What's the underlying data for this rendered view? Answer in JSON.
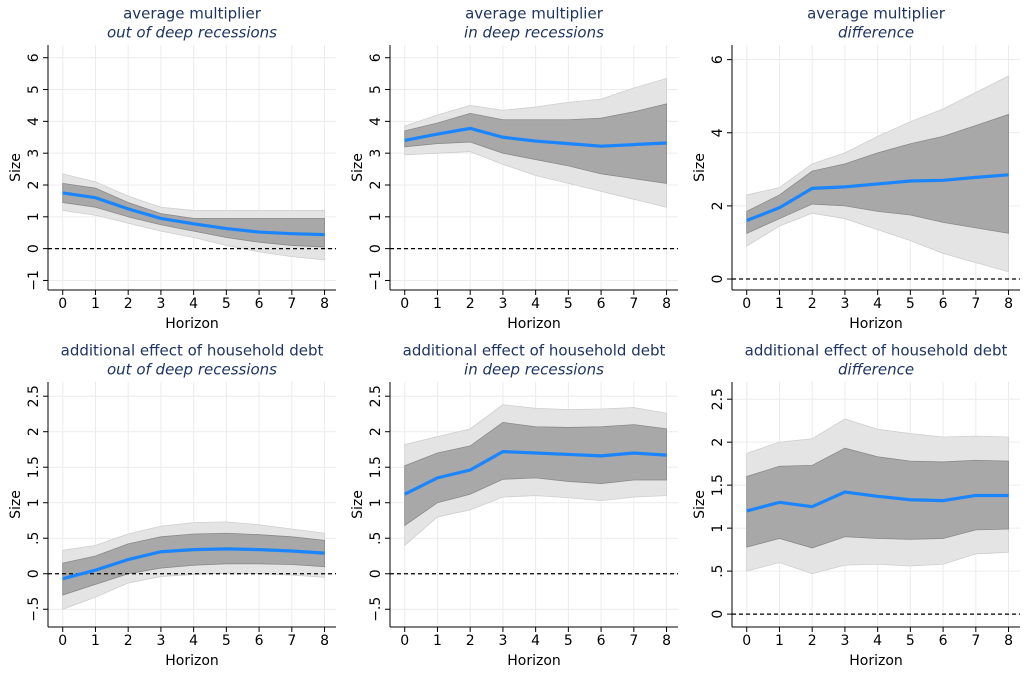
{
  "chart_data": [
    {
      "type": "line",
      "title": "average multiplier",
      "subtitle": "out of deep recessions",
      "xlabel": "Horizon",
      "ylabel": "Size",
      "x": [
        0,
        1,
        2,
        3,
        4,
        5,
        6,
        7,
        8
      ],
      "xlim": [
        -0.45,
        8.35
      ],
      "xticks": [
        0,
        1,
        2,
        3,
        4,
        5,
        6,
        7,
        8
      ],
      "ylim": [
        -1.3,
        6.4
      ],
      "yticks": [
        {
          "value": -1,
          "label": "−1"
        },
        0,
        1,
        2,
        3,
        4,
        5,
        6
      ],
      "grid": true,
      "refline": 0,
      "color": "#1a85ff",
      "values": [
        1.75,
        1.6,
        1.25,
        0.95,
        0.78,
        0.63,
        0.52,
        0.47,
        0.44
      ],
      "bands": [
        {
          "color": "#e4e4e4",
          "upper": [
            2.35,
            2.1,
            1.65,
            1.3,
            1.2,
            1.2,
            1.2,
            1.2,
            1.2
          ],
          "lower": [
            1.2,
            1.05,
            0.8,
            0.55,
            0.35,
            0.1,
            -0.1,
            -0.25,
            -0.35
          ]
        },
        {
          "color": "#a8a8a8",
          "upper": [
            2.05,
            1.9,
            1.45,
            1.1,
            0.95,
            0.95,
            0.95,
            0.95,
            0.95
          ],
          "lower": [
            1.45,
            1.3,
            1.0,
            0.75,
            0.55,
            0.35,
            0.2,
            0.1,
            0.05
          ]
        }
      ]
    },
    {
      "type": "line",
      "title": "average multiplier",
      "subtitle": "in deep recessions",
      "xlabel": "Horizon",
      "ylabel": "Size",
      "x": [
        0,
        1,
        2,
        3,
        4,
        5,
        6,
        7,
        8
      ],
      "xlim": [
        -0.45,
        8.35
      ],
      "xticks": [
        0,
        1,
        2,
        3,
        4,
        5,
        6,
        7,
        8
      ],
      "ylim": [
        -1.3,
        6.4
      ],
      "yticks": [
        {
          "value": -1,
          "label": "−1"
        },
        0,
        1,
        2,
        3,
        4,
        5,
        6
      ],
      "grid": true,
      "refline": 0,
      "color": "#1a85ff",
      "values": [
        3.4,
        3.6,
        3.78,
        3.5,
        3.38,
        3.3,
        3.22,
        3.27,
        3.32
      ],
      "bands": [
        {
          "color": "#e4e4e4",
          "upper": [
            3.85,
            4.2,
            4.5,
            4.35,
            4.45,
            4.6,
            4.7,
            5.05,
            5.35
          ],
          "lower": [
            2.95,
            3.0,
            3.05,
            2.65,
            2.3,
            2.05,
            1.8,
            1.55,
            1.3
          ]
        },
        {
          "color": "#a8a8a8",
          "upper": [
            3.7,
            3.95,
            4.25,
            4.05,
            4.05,
            4.05,
            4.1,
            4.3,
            4.55
          ],
          "lower": [
            3.2,
            3.3,
            3.35,
            3.0,
            2.8,
            2.6,
            2.35,
            2.2,
            2.05
          ]
        }
      ]
    },
    {
      "type": "line",
      "title": "average multiplier",
      "subtitle": "difference",
      "xlabel": "Horizon",
      "ylabel": "Size",
      "x": [
        0,
        1,
        2,
        3,
        4,
        5,
        6,
        7,
        8
      ],
      "xlim": [
        -0.45,
        8.35
      ],
      "xticks": [
        0,
        1,
        2,
        3,
        4,
        5,
        6,
        7,
        8
      ],
      "ylim": [
        -0.3,
        6.4
      ],
      "yticks": [
        0,
        2,
        4,
        6
      ],
      "grid": true,
      "refline": 0,
      "color": "#1a85ff",
      "values": [
        1.6,
        1.95,
        2.48,
        2.52,
        2.6,
        2.68,
        2.7,
        2.78,
        2.85
      ],
      "bands": [
        {
          "color": "#e4e4e4",
          "upper": [
            2.3,
            2.5,
            3.15,
            3.45,
            3.9,
            4.3,
            4.65,
            5.1,
            5.55
          ],
          "lower": [
            0.9,
            1.45,
            1.8,
            1.65,
            1.35,
            1.05,
            0.7,
            0.45,
            0.2
          ]
        },
        {
          "color": "#a8a8a8",
          "upper": [
            1.85,
            2.3,
            2.95,
            3.15,
            3.45,
            3.7,
            3.9,
            4.2,
            4.5
          ],
          "lower": [
            1.25,
            1.65,
            2.05,
            2.0,
            1.85,
            1.75,
            1.55,
            1.4,
            1.25
          ]
        }
      ]
    },
    {
      "type": "line",
      "title": "additional effect of household debt",
      "subtitle": "out of deep recessions",
      "xlabel": "Horizon",
      "ylabel": "Size",
      "x": [
        0,
        1,
        2,
        3,
        4,
        5,
        6,
        7,
        8
      ],
      "xlim": [
        -0.45,
        8.35
      ],
      "xticks": [
        0,
        1,
        2,
        3,
        4,
        5,
        6,
        7,
        8
      ],
      "ylim": [
        -0.75,
        2.7
      ],
      "yticks": [
        {
          "value": -0.5,
          "label": "−.5"
        },
        0,
        {
          "value": 0.5,
          "label": ".5"
        },
        1,
        1.5,
        2,
        2.5
      ],
      "grid": true,
      "refline": 0,
      "color": "#1a85ff",
      "values": [
        -0.07,
        0.05,
        0.2,
        0.31,
        0.34,
        0.35,
        0.34,
        0.32,
        0.29
      ],
      "bands": [
        {
          "color": "#e4e4e4",
          "upper": [
            0.33,
            0.4,
            0.56,
            0.67,
            0.72,
            0.73,
            0.69,
            0.63,
            0.57
          ],
          "lower": [
            -0.5,
            -0.33,
            -0.13,
            -0.04,
            -0.01,
            0.01,
            0.0,
            -0.02,
            -0.05
          ]
        },
        {
          "color": "#a8a8a8",
          "upper": [
            0.15,
            0.25,
            0.42,
            0.52,
            0.56,
            0.57,
            0.55,
            0.52,
            0.47
          ],
          "lower": [
            -0.3,
            -0.15,
            0.0,
            0.08,
            0.12,
            0.14,
            0.14,
            0.13,
            0.1
          ]
        }
      ]
    },
    {
      "type": "line",
      "title": "additional effect of household debt",
      "subtitle": "in deep recessions",
      "xlabel": "Horizon",
      "ylabel": "Size",
      "x": [
        0,
        1,
        2,
        3,
        4,
        5,
        6,
        7,
        8
      ],
      "xlim": [
        -0.45,
        8.35
      ],
      "xticks": [
        0,
        1,
        2,
        3,
        4,
        5,
        6,
        7,
        8
      ],
      "ylim": [
        -0.75,
        2.7
      ],
      "yticks": [
        {
          "value": -0.5,
          "label": "−.5"
        },
        0,
        {
          "value": 0.5,
          "label": ".5"
        },
        1,
        1.5,
        2,
        2.5
      ],
      "grid": true,
      "refline": 0,
      "color": "#1a85ff",
      "values": [
        1.12,
        1.35,
        1.46,
        1.72,
        1.7,
        1.68,
        1.66,
        1.7,
        1.67
      ],
      "bands": [
        {
          "color": "#e4e4e4",
          "upper": [
            1.82,
            1.93,
            2.04,
            2.38,
            2.33,
            2.31,
            2.32,
            2.34,
            2.26
          ],
          "lower": [
            0.4,
            0.8,
            0.9,
            1.08,
            1.1,
            1.07,
            1.03,
            1.08,
            1.1
          ]
        },
        {
          "color": "#a8a8a8",
          "upper": [
            1.52,
            1.7,
            1.8,
            2.13,
            2.07,
            2.06,
            2.07,
            2.1,
            2.04
          ],
          "lower": [
            0.68,
            1.0,
            1.12,
            1.33,
            1.35,
            1.3,
            1.27,
            1.32,
            1.32
          ]
        }
      ]
    },
    {
      "type": "line",
      "title": "additional effect of household debt",
      "subtitle": "difference",
      "xlabel": "Horizon",
      "ylabel": "Size",
      "x": [
        0,
        1,
        2,
        3,
        4,
        5,
        6,
        7,
        8
      ],
      "xlim": [
        -0.45,
        8.35
      ],
      "xticks": [
        0,
        1,
        2,
        3,
        4,
        5,
        6,
        7,
        8
      ],
      "ylim": [
        -0.15,
        2.7
      ],
      "yticks": [
        0,
        {
          "value": 0.5,
          "label": ".5"
        },
        1,
        1.5,
        2,
        2.5
      ],
      "grid": true,
      "refline": 0,
      "color": "#1a85ff",
      "values": [
        1.2,
        1.3,
        1.25,
        1.42,
        1.37,
        1.33,
        1.32,
        1.38,
        1.38
      ],
      "bands": [
        {
          "color": "#e4e4e4",
          "upper": [
            1.87,
            2.0,
            2.04,
            2.27,
            2.15,
            2.1,
            2.06,
            2.07,
            2.06
          ],
          "lower": [
            0.5,
            0.6,
            0.47,
            0.57,
            0.58,
            0.56,
            0.58,
            0.7,
            0.72
          ]
        },
        {
          "color": "#a8a8a8",
          "upper": [
            1.6,
            1.72,
            1.73,
            1.93,
            1.83,
            1.78,
            1.77,
            1.79,
            1.78
          ],
          "lower": [
            0.78,
            0.88,
            0.77,
            0.9,
            0.88,
            0.87,
            0.88,
            0.98,
            0.99
          ]
        }
      ]
    }
  ]
}
